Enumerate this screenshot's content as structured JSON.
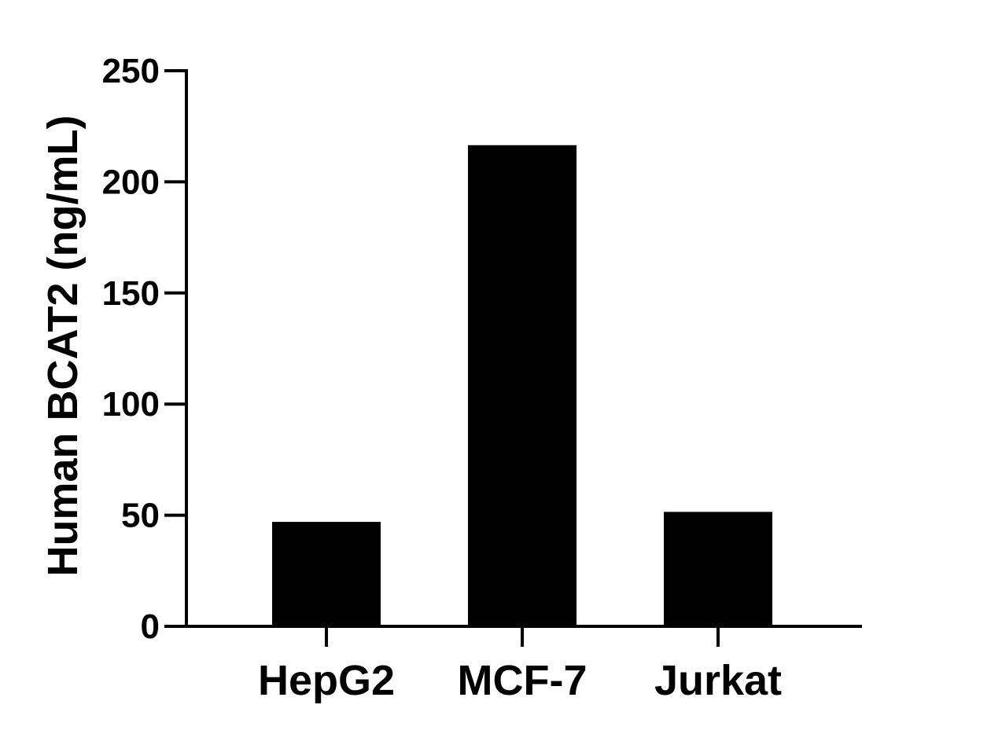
{
  "chart_data": {
    "type": "bar",
    "title": "",
    "xlabel": "",
    "ylabel": "Human BCAT2 (ng/mL)",
    "categories": [
      "HepG2",
      "MCF-7",
      "Jurkat"
    ],
    "values": [
      47,
      216.5,
      51.5
    ],
    "ylim": [
      0,
      250
    ],
    "yticks": [
      0,
      50,
      100,
      150,
      200,
      250
    ],
    "bar_color": "#000000",
    "axis_color": "#000000",
    "grid": false,
    "legend": "none"
  }
}
